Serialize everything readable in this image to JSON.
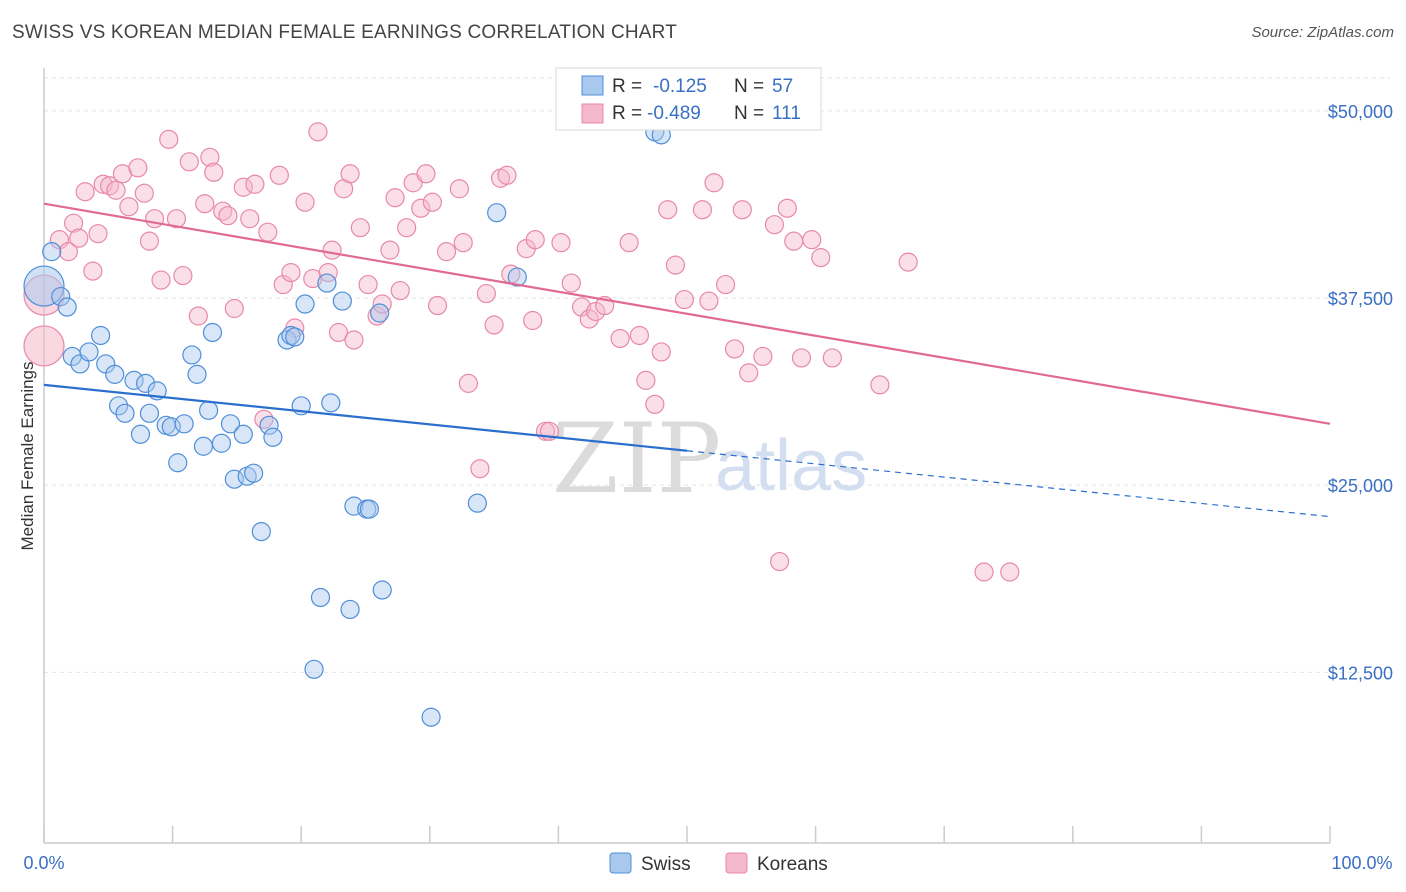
{
  "title": "SWISS VS KOREAN MEDIAN FEMALE EARNINGS CORRELATION CHART",
  "source": "Source: ZipAtlas.com",
  "watermark": {
    "zip": "ZIP",
    "atlas": "atlas"
  },
  "legend": {
    "swiss": {
      "r_label": "R =",
      "r_value": "-0.125",
      "n_label": "N =",
      "n_value": "57"
    },
    "koreans": {
      "r_label": "R =",
      "r_value": "-0.489",
      "n_label": "N =",
      "n_value": "111"
    }
  },
  "colors": {
    "swiss_fill": "#a9c8ee",
    "swiss_stroke": "#4f8fd9",
    "swiss_line": "#2b6fce",
    "koreans_fill": "#f5b8cb",
    "koreans_stroke": "#e889a8",
    "koreans_line": "#e06a95",
    "axis_text": "#3a6fc4"
  },
  "chart_data": {
    "type": "scatter",
    "title": "SWISS VS KOREAN MEDIAN FEMALE EARNINGS CORRELATION CHART",
    "xlabel": "",
    "ylabel": "Median Female Earnings",
    "x_tick_labels": [
      "0.0%",
      "100.0%"
    ],
    "y_ticks": [
      12500,
      25000,
      37500,
      50000
    ],
    "y_tick_labels": [
      "$12,500",
      "$25,000",
      "$37,500",
      "$50,000"
    ],
    "xlim": [
      0,
      100
    ],
    "ylim": [
      1100,
      53400
    ],
    "series": [
      {
        "name": "Swiss",
        "trend": {
          "x0": 0,
          "y0": 31700,
          "x1": 100,
          "y1": 22900,
          "solid_until_x": 50
        },
        "points": [
          [
            0.0,
            38300,
            "big"
          ],
          [
            0.6,
            40600
          ],
          [
            1.3,
            37600
          ],
          [
            1.8,
            36900
          ],
          [
            2.2,
            33600
          ],
          [
            2.8,
            33100
          ],
          [
            3.5,
            33900
          ],
          [
            4.4,
            35000
          ],
          [
            4.8,
            33100
          ],
          [
            5.5,
            32400
          ],
          [
            5.8,
            30300
          ],
          [
            6.3,
            29800
          ],
          [
            7.0,
            32000
          ],
          [
            7.5,
            28400
          ],
          [
            7.9,
            31800
          ],
          [
            8.2,
            29800
          ],
          [
            8.8,
            31300
          ],
          [
            9.5,
            29000
          ],
          [
            9.9,
            28900
          ],
          [
            10.4,
            26500
          ],
          [
            10.9,
            29100
          ],
          [
            11.5,
            33700
          ],
          [
            11.9,
            32400
          ],
          [
            12.4,
            27600
          ],
          [
            12.8,
            30000
          ],
          [
            13.1,
            35200
          ],
          [
            13.8,
            27800
          ],
          [
            14.5,
            29100
          ],
          [
            14.8,
            25400
          ],
          [
            15.5,
            28400
          ],
          [
            15.8,
            25600
          ],
          [
            16.3,
            25800
          ],
          [
            16.9,
            21900
          ],
          [
            17.5,
            29000
          ],
          [
            17.8,
            28200
          ],
          [
            18.9,
            34700
          ],
          [
            19.2,
            35000
          ],
          [
            19.5,
            34900
          ],
          [
            20.0,
            30300
          ],
          [
            20.3,
            37100
          ],
          [
            21.0,
            12700
          ],
          [
            21.5,
            17500
          ],
          [
            22.0,
            38500
          ],
          [
            22.3,
            30500
          ],
          [
            23.2,
            37300
          ],
          [
            23.8,
            16700
          ],
          [
            24.1,
            23600
          ],
          [
            25.1,
            23400
          ],
          [
            25.3,
            23400
          ],
          [
            26.1,
            36500
          ],
          [
            26.3,
            18000
          ],
          [
            30.1,
            9500
          ],
          [
            33.7,
            23800
          ],
          [
            35.2,
            43200
          ],
          [
            36.8,
            38900
          ],
          [
            47.5,
            48600
          ],
          [
            48.0,
            48400
          ]
        ]
      },
      {
        "name": "Koreans",
        "trend": {
          "x0": 0,
          "y0": 43800,
          "x1": 100,
          "y1": 29100
        },
        "points": [
          [
            0.0,
            34300,
            "big"
          ],
          [
            0.0,
            37700,
            "big"
          ],
          [
            1.2,
            41400
          ],
          [
            1.9,
            40600
          ],
          [
            2.3,
            42500
          ],
          [
            2.7,
            41500
          ],
          [
            3.2,
            44600
          ],
          [
            3.8,
            39300
          ],
          [
            4.2,
            41800
          ],
          [
            4.6,
            45100
          ],
          [
            5.1,
            45000
          ],
          [
            5.6,
            44700
          ],
          [
            6.1,
            45800
          ],
          [
            6.6,
            43600
          ],
          [
            7.3,
            46200
          ],
          [
            7.8,
            44500
          ],
          [
            8.2,
            41300
          ],
          [
            8.6,
            42800
          ],
          [
            9.1,
            38700
          ],
          [
            9.7,
            48100
          ],
          [
            10.3,
            42800
          ],
          [
            10.8,
            39000
          ],
          [
            11.3,
            46600
          ],
          [
            12.0,
            36300
          ],
          [
            12.5,
            43800
          ],
          [
            12.9,
            46900
          ],
          [
            13.2,
            45900
          ],
          [
            13.9,
            43300
          ],
          [
            14.3,
            43000
          ],
          [
            14.8,
            36800
          ],
          [
            15.5,
            44900
          ],
          [
            16.0,
            42800
          ],
          [
            16.4,
            45100
          ],
          [
            17.1,
            29400
          ],
          [
            17.4,
            41900
          ],
          [
            18.3,
            45700
          ],
          [
            18.6,
            38400
          ],
          [
            19.2,
            39200
          ],
          [
            19.5,
            35500
          ],
          [
            20.3,
            43900
          ],
          [
            20.9,
            38800
          ],
          [
            21.3,
            48600
          ],
          [
            22.1,
            39200
          ],
          [
            22.4,
            40700
          ],
          [
            22.9,
            35200
          ],
          [
            23.3,
            44800
          ],
          [
            23.8,
            45800
          ],
          [
            24.1,
            34700
          ],
          [
            24.6,
            42200
          ],
          [
            25.2,
            38400
          ],
          [
            25.9,
            36300
          ],
          [
            26.3,
            37100
          ],
          [
            26.9,
            40700
          ],
          [
            27.3,
            44200
          ],
          [
            27.7,
            38000
          ],
          [
            28.2,
            42200
          ],
          [
            28.7,
            45200
          ],
          [
            29.3,
            43500
          ],
          [
            29.7,
            45800
          ],
          [
            30.2,
            43900
          ],
          [
            30.6,
            37000
          ],
          [
            31.3,
            40600
          ],
          [
            32.3,
            44800
          ],
          [
            32.6,
            41200
          ],
          [
            33.0,
            31800
          ],
          [
            33.9,
            26100
          ],
          [
            34.4,
            37800
          ],
          [
            35.0,
            35700
          ],
          [
            35.5,
            45500
          ],
          [
            36.0,
            45700
          ],
          [
            36.3,
            39100
          ],
          [
            37.5,
            40800
          ],
          [
            38.0,
            36000
          ],
          [
            38.2,
            41400
          ],
          [
            39.0,
            28600
          ],
          [
            39.3,
            28600
          ],
          [
            40.2,
            41200
          ],
          [
            41.0,
            38500
          ],
          [
            41.8,
            36900
          ],
          [
            42.4,
            36100
          ],
          [
            42.9,
            36600
          ],
          [
            43.6,
            37000
          ],
          [
            44.8,
            34800
          ],
          [
            45.5,
            41200
          ],
          [
            46.3,
            35000
          ],
          [
            46.8,
            32000
          ],
          [
            47.5,
            30400
          ],
          [
            48.0,
            33900
          ],
          [
            48.5,
            43400
          ],
          [
            49.1,
            39700
          ],
          [
            49.8,
            37400
          ],
          [
            51.2,
            43400
          ],
          [
            51.7,
            37300
          ],
          [
            52.1,
            45200
          ],
          [
            53.0,
            38400
          ],
          [
            53.7,
            34100
          ],
          [
            54.3,
            43400
          ],
          [
            54.8,
            32500
          ],
          [
            55.9,
            33600
          ],
          [
            56.8,
            42400
          ],
          [
            57.2,
            19900
          ],
          [
            57.8,
            43500
          ],
          [
            58.3,
            41300
          ],
          [
            58.9,
            33500
          ],
          [
            59.7,
            41400
          ],
          [
            60.4,
            40200
          ],
          [
            61.3,
            33500
          ],
          [
            65.0,
            31700
          ],
          [
            67.2,
            39900
          ],
          [
            73.1,
            19200
          ],
          [
            75.1,
            19200
          ]
        ]
      }
    ]
  },
  "bottom_legend": {
    "swiss": "Swiss",
    "koreans": "Koreans"
  }
}
